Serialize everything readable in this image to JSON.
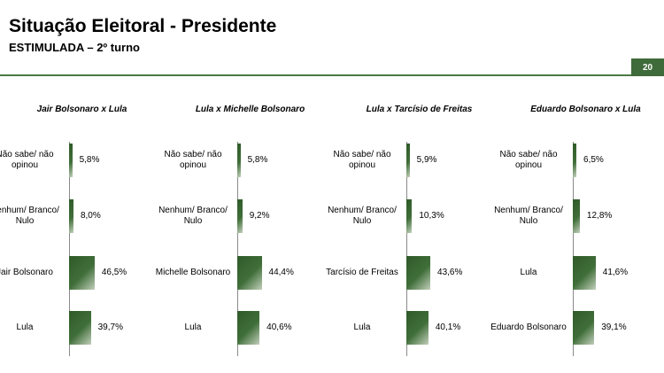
{
  "header": {
    "title": "Situação Eleitoral - Presidente",
    "subtitle": "ESTIMULADA – 2º turno",
    "page_number": "20"
  },
  "colors": {
    "accent": "#3f6a39",
    "bar": "#2f5a29",
    "axis": "#8a8a8a"
  },
  "chart_data": [
    {
      "type": "bar",
      "orientation": "horizontal",
      "title": "Jair Bolsonaro x Lula",
      "categories": [
        "Não sabe/ não opinou",
        "Nenhum/ Branco/ Nulo",
        "Jair Bolsonaro",
        "Lula"
      ],
      "values": [
        5.8,
        8.0,
        46.5,
        39.7
      ],
      "value_labels": [
        "5,8%",
        "8,0%",
        "46,5%",
        "39,7%"
      ],
      "xlim": [
        0,
        100
      ]
    },
    {
      "type": "bar",
      "orientation": "horizontal",
      "title": "Lula x Michelle Bolsonaro",
      "categories": [
        "Não sabe/ não opinou",
        "Nenhum/ Branco/ Nulo",
        "Michelle Bolsonaro",
        "Lula"
      ],
      "values": [
        5.8,
        9.2,
        44.4,
        40.6
      ],
      "value_labels": [
        "5,8%",
        "9,2%",
        "44,4%",
        "40,6%"
      ],
      "xlim": [
        0,
        100
      ]
    },
    {
      "type": "bar",
      "orientation": "horizontal",
      "title": "Lula x Tarcísio de Freitas",
      "categories": [
        "Não sabe/ não opinou",
        "Nenhum/ Branco/ Nulo",
        "Tarcísio de Freitas",
        "Lula"
      ],
      "values": [
        5.9,
        10.3,
        43.6,
        40.1
      ],
      "value_labels": [
        "5,9%",
        "10,3%",
        "43,6%",
        "40,1%"
      ],
      "xlim": [
        0,
        100
      ]
    },
    {
      "type": "bar",
      "orientation": "horizontal",
      "title": "Eduardo Bolsonaro x Lula",
      "categories": [
        "Não sabe/ não opinou",
        "Nenhum/ Branco/ Nulo",
        "Lula",
        "Eduardo Bolsonaro"
      ],
      "values": [
        6.5,
        12.8,
        41.6,
        39.1
      ],
      "value_labels": [
        "6,5%",
        "12,8%",
        "41,6%",
        "39,1%"
      ],
      "xlim": [
        0,
        100
      ]
    }
  ]
}
